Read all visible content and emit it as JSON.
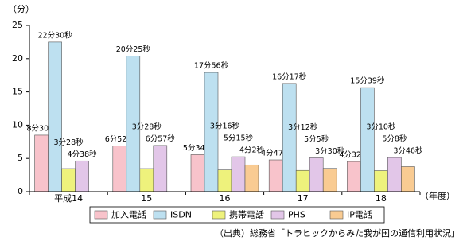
{
  "chart_data": {
    "type": "bar",
    "y_label": "（分）",
    "x_label": "（年度）",
    "source": "（出典）総務省「トラヒックからみた我が国の通信利用状況」",
    "categories": [
      "平成14",
      "15",
      "16",
      "17",
      "18"
    ],
    "ylim": [
      0,
      25
    ],
    "yticks": [
      0,
      5,
      10,
      15,
      20,
      25
    ],
    "grid": false,
    "legend": "bottom",
    "series": [
      {
        "name": "加入電話",
        "color": "#f8c3cb",
        "values": [
          8.5,
          6.8667,
          5.5667,
          4.7833,
          4.5333
        ],
        "value_labels": [
          "8分30秒",
          "6分52秒",
          "5分34秒",
          "4分47秒",
          "4分32秒"
        ]
      },
      {
        "name": "ISDN",
        "color": "#bde0f0",
        "values": [
          22.5,
          20.4167,
          17.9333,
          16.2833,
          15.65
        ],
        "value_labels": [
          "22分30秒",
          "20分25秒",
          "17分56秒",
          "16分17秒",
          "15分39秒"
        ]
      },
      {
        "name": "携帯電話",
        "color": "#eef27c",
        "values": [
          3.4667,
          3.4667,
          3.2667,
          3.2,
          3.1667
        ],
        "value_labels": [
          "3分28秒",
          "3分28秒",
          "3分16秒",
          "3分12秒",
          "3分10秒"
        ]
      },
      {
        "name": "PHS",
        "color": "#e2c6e8",
        "values": [
          4.6333,
          6.95,
          5.25,
          5.0833,
          5.1333
        ],
        "value_labels": [
          "4分38秒",
          "6分57秒",
          "5分15秒",
          "5分5秒",
          "5分8秒"
        ]
      },
      {
        "name": "IP電話",
        "color": "#f9cb92",
        "values": [
          null,
          null,
          4.0333,
          3.5,
          3.7667
        ],
        "value_labels": [
          null,
          null,
          "4分2秒",
          "3分30秒",
          "3分46秒"
        ]
      }
    ]
  }
}
